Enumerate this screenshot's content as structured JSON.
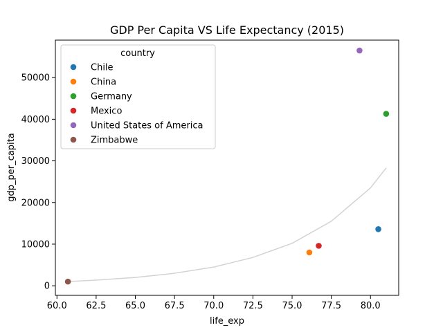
{
  "chart_data": {
    "type": "scatter",
    "title": "GDP Per Capita VS Life Expectancy (2015)",
    "xlabel": "life_exp",
    "ylabel": "gdp_per_capita",
    "xlim": [
      59.9,
      81.8
    ],
    "ylim": [
      -2300,
      59000
    ],
    "x_ticks": [
      60.0,
      62.5,
      65.0,
      67.5,
      70.0,
      72.5,
      75.0,
      77.5,
      80.0
    ],
    "x_tick_labels": [
      "60.0",
      "62.5",
      "65.0",
      "67.5",
      "70.0",
      "72.5",
      "75.0",
      "77.5",
      "80.0"
    ],
    "y_ticks": [
      0,
      10000,
      20000,
      30000,
      40000,
      50000
    ],
    "y_tick_labels": [
      "0",
      "10000",
      "20000",
      "30000",
      "40000",
      "50000"
    ],
    "grid": false,
    "legend": {
      "title": "country",
      "placement": "top-left"
    },
    "series": [
      {
        "name": "Chile",
        "color": "#1f77b4",
        "points": [
          {
            "x": 80.5,
            "y": 13600
          }
        ]
      },
      {
        "name": "China",
        "color": "#ff7f0e",
        "points": [
          {
            "x": 76.1,
            "y": 8000
          }
        ]
      },
      {
        "name": "Germany",
        "color": "#2ca02c",
        "points": [
          {
            "x": 81.0,
            "y": 41300
          }
        ]
      },
      {
        "name": "Mexico",
        "color": "#d62728",
        "points": [
          {
            "x": 76.7,
            "y": 9600
          }
        ]
      },
      {
        "name": "United States of America",
        "color": "#9467bd",
        "points": [
          {
            "x": 79.3,
            "y": 56500
          }
        ]
      },
      {
        "name": "Zimbabwe",
        "color": "#8c564b",
        "points": [
          {
            "x": 60.7,
            "y": 1000
          }
        ]
      }
    ],
    "trend_line": {
      "type": "exponential",
      "color": "#d3d3d3",
      "x": [
        60.7,
        62.5,
        65.0,
        67.5,
        70.0,
        72.5,
        75.0,
        77.5,
        80.0,
        81.0
      ],
      "y": [
        1000,
        1350,
        2000,
        3000,
        4500,
        6800,
        10200,
        15500,
        23500,
        28300
      ]
    }
  }
}
